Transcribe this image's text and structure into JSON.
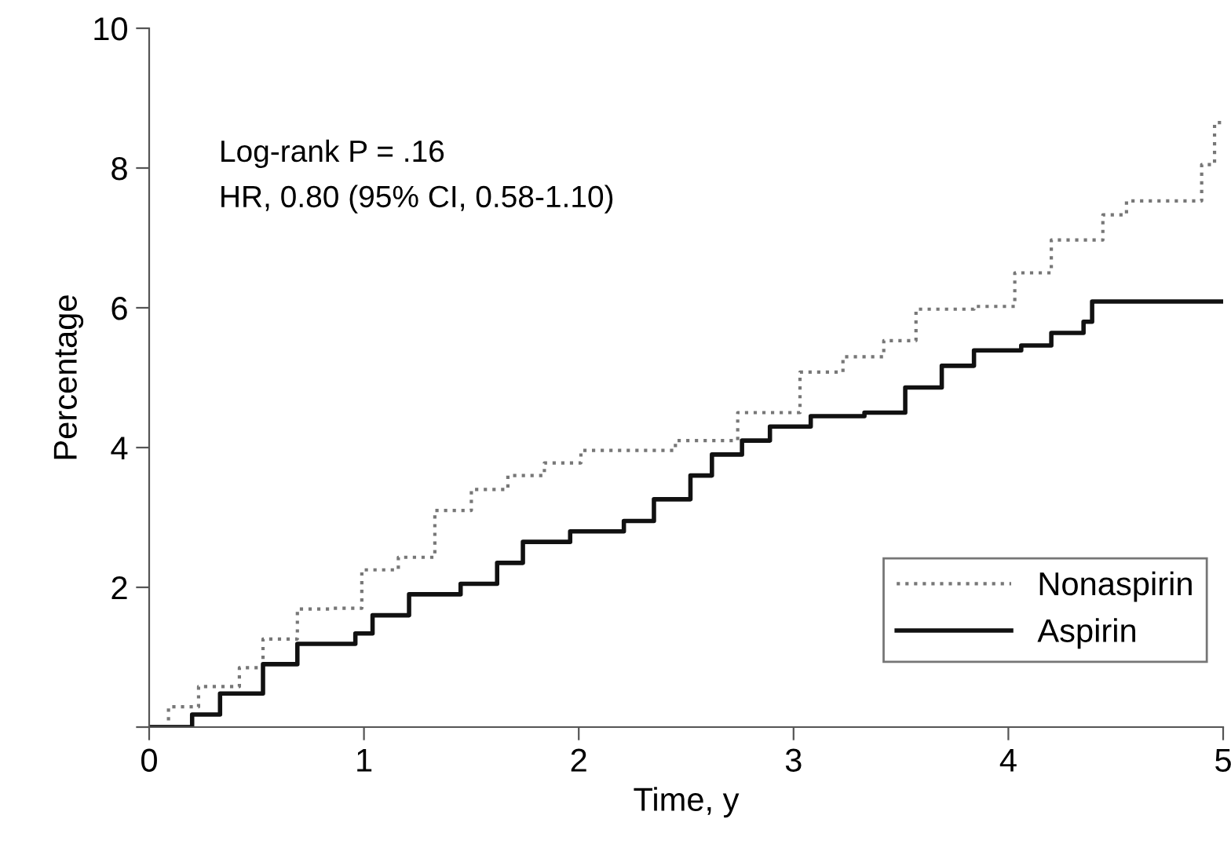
{
  "chart_data": {
    "type": "step",
    "xlabel": "Time, y",
    "ylabel": "Percentage",
    "xlim": [
      0,
      5
    ],
    "ylim": [
      0,
      10
    ],
    "xticks": [
      0,
      1,
      2,
      3,
      4,
      5
    ],
    "yticks": [
      {
        "value": 0,
        "label": null
      },
      2,
      4,
      6,
      8,
      10
    ],
    "grid": false,
    "legend": "bottom right",
    "annotations": [
      "Log-rank P = .16",
      "HR, 0.80 (95% CI, 0.58-1.10)"
    ],
    "series": [
      {
        "name": "Nonaspirin",
        "color": "#777777",
        "line_style": "dotted",
        "x": [
          0,
          0.09,
          0.23,
          0.42,
          0.53,
          0.69,
          0.84,
          0.99,
          1.16,
          1.33,
          1.5,
          1.67,
          1.84,
          2.01,
          2.45,
          2.74,
          3.03,
          3.23,
          3.42,
          3.57,
          3.84,
          4.03,
          4.2,
          4.44,
          4.55,
          4.9,
          4.96,
          5.0
        ],
        "values": [
          0,
          0.29,
          0.58,
          0.85,
          1.26,
          1.69,
          1.7,
          2.25,
          2.43,
          3.1,
          3.4,
          3.6,
          3.78,
          3.96,
          4.1,
          4.5,
          5.08,
          5.3,
          5.53,
          5.98,
          6.02,
          6.5,
          6.97,
          7.33,
          7.53,
          8.05,
          8.65,
          8.65
        ]
      },
      {
        "name": "Aspirin",
        "color": "#111111",
        "line_style": "solid",
        "x": [
          0,
          0.2,
          0.33,
          0.53,
          0.69,
          0.96,
          1.04,
          1.21,
          1.45,
          1.62,
          1.74,
          1.96,
          2.21,
          2.35,
          2.52,
          2.62,
          2.76,
          2.89,
          3.08,
          3.33,
          3.52,
          3.69,
          3.84,
          4.06,
          4.2,
          4.35,
          4.39,
          5.0
        ],
        "values": [
          0,
          0.18,
          0.48,
          0.9,
          1.19,
          1.34,
          1.6,
          1.9,
          2.05,
          2.35,
          2.65,
          2.8,
          2.95,
          3.26,
          3.6,
          3.9,
          4.1,
          4.3,
          4.45,
          4.5,
          4.86,
          5.17,
          5.39,
          5.46,
          5.64,
          5.8,
          6.09,
          6.09
        ]
      }
    ]
  }
}
